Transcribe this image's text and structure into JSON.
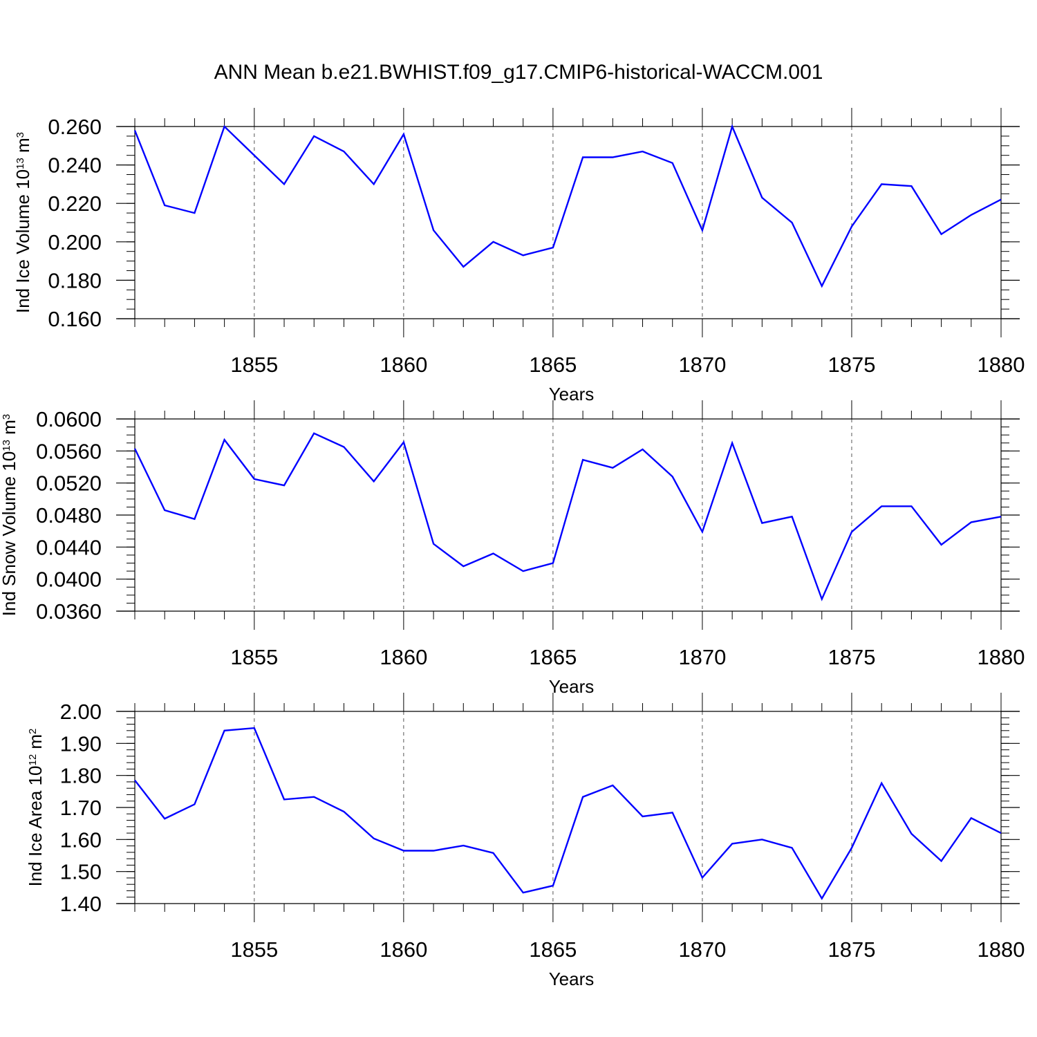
{
  "title": "ANN Mean b.e21.BWHIST.f09_g17.CMIP6-historical-WACCM.001",
  "colors": {
    "line": "#0000ff",
    "axis": "#000000",
    "grid": "#555555"
  },
  "chart_data": [
    {
      "type": "line",
      "title": "",
      "xlabel": "Years",
      "ylabel": "Ind Ice Volume",
      "ylabel_unit_base": "10",
      "ylabel_unit_exp": "13",
      "ylabel_unit_rest": "m",
      "ylabel_unit_rest_exp": "3",
      "xlim": [
        1851,
        1880
      ],
      "ylim": [
        0.16,
        0.26
      ],
      "yticks": [
        0.16,
        0.18,
        0.2,
        0.22,
        0.24,
        0.26
      ],
      "ytick_labels": [
        "0.160",
        "0.180",
        "0.200",
        "0.220",
        "0.240",
        "0.260"
      ],
      "y_minor_step": 0.005,
      "xticks": [
        1855,
        1860,
        1865,
        1870,
        1875,
        1880
      ],
      "xtick_labels": [
        "1855",
        "1860",
        "1865",
        "1870",
        "1875",
        "1880"
      ],
      "grid_x": [
        1855,
        1860,
        1865,
        1870,
        1875
      ],
      "series": [
        {
          "name": "Ind Ice Volume",
          "x": [
            1851,
            1852,
            1853,
            1854,
            1855,
            1856,
            1857,
            1858,
            1859,
            1860,
            1861,
            1862,
            1863,
            1864,
            1865,
            1866,
            1867,
            1868,
            1869,
            1870,
            1871,
            1872,
            1873,
            1874,
            1875,
            1876,
            1877,
            1878,
            1879,
            1880
          ],
          "values": [
            0.258,
            0.219,
            0.215,
            0.26,
            0.245,
            0.23,
            0.255,
            0.247,
            0.23,
            0.256,
            0.206,
            0.187,
            0.2,
            0.193,
            0.197,
            0.244,
            0.244,
            0.247,
            0.241,
            0.206,
            0.26,
            0.223,
            0.21,
            0.177,
            0.208,
            0.23,
            0.229,
            0.204,
            0.214,
            0.222
          ]
        }
      ]
    },
    {
      "type": "line",
      "title": "",
      "xlabel": "Years",
      "ylabel": "Ind Snow Volume",
      "ylabel_unit_base": "10",
      "ylabel_unit_exp": "13",
      "ylabel_unit_rest": "m",
      "ylabel_unit_rest_exp": "3",
      "xlim": [
        1851,
        1880
      ],
      "ylim": [
        0.036,
        0.06
      ],
      "yticks": [
        0.036,
        0.04,
        0.044,
        0.048,
        0.052,
        0.056,
        0.06
      ],
      "ytick_labels": [
        "0.0360",
        "0.0400",
        "0.0440",
        "0.0480",
        "0.0520",
        "0.0560",
        "0.0600"
      ],
      "y_minor_step": 0.001,
      "xticks": [
        1855,
        1860,
        1865,
        1870,
        1875,
        1880
      ],
      "xtick_labels": [
        "1855",
        "1860",
        "1865",
        "1870",
        "1875",
        "1880"
      ],
      "grid_x": [
        1855,
        1860,
        1865,
        1870,
        1875
      ],
      "series": [
        {
          "name": "Ind Snow Volume",
          "x": [
            1851,
            1852,
            1853,
            1854,
            1855,
            1856,
            1857,
            1858,
            1859,
            1860,
            1861,
            1862,
            1863,
            1864,
            1865,
            1866,
            1867,
            1868,
            1869,
            1870,
            1871,
            1872,
            1873,
            1874,
            1875,
            1876,
            1877,
            1878,
            1879,
            1880
          ],
          "values": [
            0.0563,
            0.0486,
            0.0475,
            0.0574,
            0.0525,
            0.0517,
            0.0582,
            0.0565,
            0.0522,
            0.0571,
            0.0444,
            0.0416,
            0.0432,
            0.041,
            0.042,
            0.0549,
            0.0539,
            0.0562,
            0.0528,
            0.0459,
            0.057,
            0.047,
            0.0478,
            0.0375,
            0.0459,
            0.0491,
            0.0491,
            0.0443,
            0.0471,
            0.0478
          ]
        }
      ]
    },
    {
      "type": "line",
      "title": "",
      "xlabel": "Years",
      "ylabel": "Ind Ice Area",
      "ylabel_unit_base": "10",
      "ylabel_unit_exp": "12",
      "ylabel_unit_rest": "m",
      "ylabel_unit_rest_exp": "2",
      "xlim": [
        1851,
        1880
      ],
      "ylim": [
        1.4,
        2.0
      ],
      "yticks": [
        1.4,
        1.5,
        1.6,
        1.7,
        1.8,
        1.9,
        2.0
      ],
      "ytick_labels": [
        "1.40",
        "1.50",
        "1.60",
        "1.70",
        "1.80",
        "1.90",
        "2.00"
      ],
      "y_minor_step": 0.02,
      "xticks": [
        1855,
        1860,
        1865,
        1870,
        1875,
        1880
      ],
      "xtick_labels": [
        "1855",
        "1860",
        "1865",
        "1870",
        "1875",
        "1880"
      ],
      "grid_x": [
        1855,
        1860,
        1865,
        1870,
        1875
      ],
      "series": [
        {
          "name": "Ind Ice Area",
          "x": [
            1851,
            1852,
            1853,
            1854,
            1855,
            1856,
            1857,
            1858,
            1859,
            1860,
            1861,
            1862,
            1863,
            1864,
            1865,
            1866,
            1867,
            1868,
            1869,
            1870,
            1871,
            1872,
            1873,
            1874,
            1875,
            1876,
            1877,
            1878,
            1879,
            1880
          ],
          "values": [
            1.785,
            1.665,
            1.71,
            1.94,
            1.948,
            1.725,
            1.733,
            1.687,
            1.603,
            1.565,
            1.565,
            1.581,
            1.558,
            1.434,
            1.456,
            1.733,
            1.769,
            1.672,
            1.684,
            1.481,
            1.587,
            1.6,
            1.574,
            1.416,
            1.574,
            1.776,
            1.618,
            1.533,
            1.667,
            1.62
          ]
        }
      ]
    }
  ]
}
